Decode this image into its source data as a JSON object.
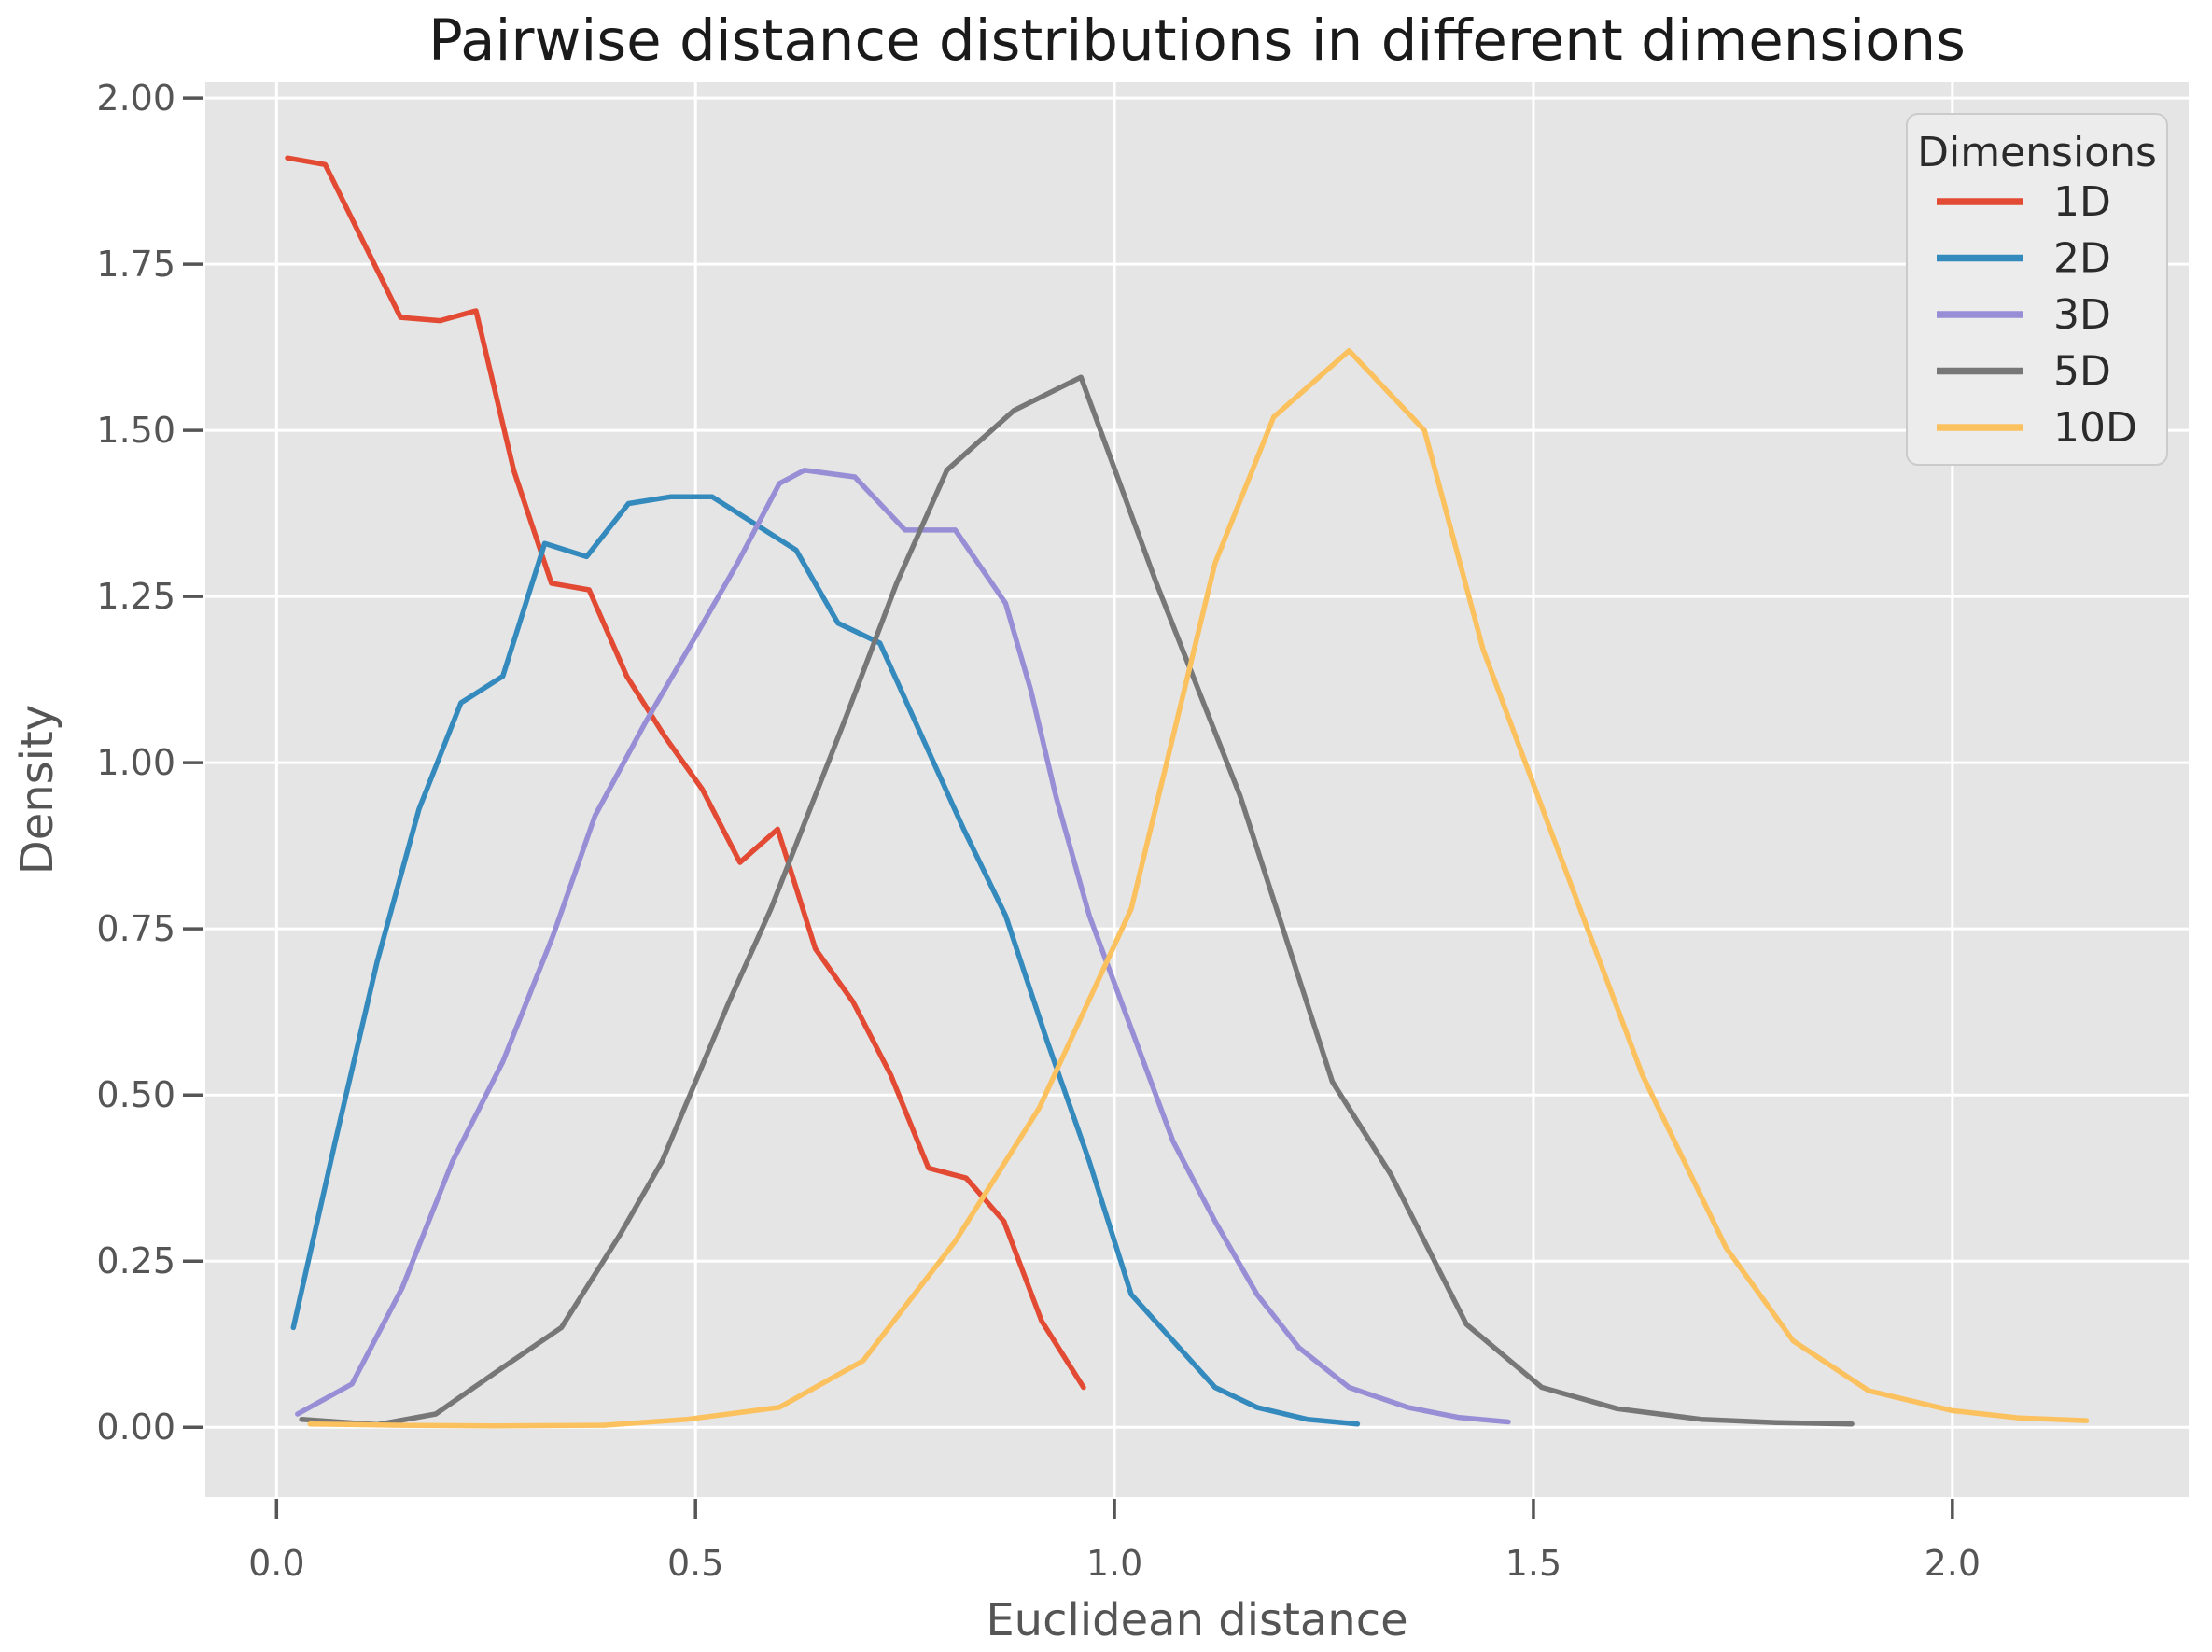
{
  "chart_data": {
    "type": "line",
    "title": "Pairwise distance distributions in different dimensions",
    "xlabel": "Euclidean distance",
    "ylabel": "Density",
    "xlim": [
      -0.085,
      2.282
    ],
    "ylim": [
      -0.105,
      2.024
    ],
    "grid": true,
    "x_ticks": [
      {
        "value": 0.0,
        "label": "0.0"
      },
      {
        "value": 0.5,
        "label": "0.5"
      },
      {
        "value": 1.0,
        "label": "1.0"
      },
      {
        "value": 1.5,
        "label": "1.5"
      },
      {
        "value": 2.0,
        "label": "2.0"
      }
    ],
    "y_ticks": [
      {
        "value": 0.0,
        "label": "0.00"
      },
      {
        "value": 0.25,
        "label": "0.25"
      },
      {
        "value": 0.5,
        "label": "0.50"
      },
      {
        "value": 0.75,
        "label": "0.75"
      },
      {
        "value": 1.0,
        "label": "1.00"
      },
      {
        "value": 1.25,
        "label": "1.25"
      },
      {
        "value": 1.5,
        "label": "1.50"
      },
      {
        "value": 1.75,
        "label": "1.75"
      },
      {
        "value": 2.0,
        "label": "2.00"
      }
    ],
    "legend": {
      "title": "Dimensions",
      "position": "upper right"
    },
    "series": [
      {
        "name": "1D",
        "color": "#E24A33",
        "points": [
          [
            0.013,
            1.91
          ],
          [
            0.058,
            1.9
          ],
          [
            0.148,
            1.67
          ],
          [
            0.195,
            1.665
          ],
          [
            0.238,
            1.68
          ],
          [
            0.283,
            1.44
          ],
          [
            0.328,
            1.27
          ],
          [
            0.373,
            1.26
          ],
          [
            0.418,
            1.13
          ],
          [
            0.463,
            1.04
          ],
          [
            0.508,
            0.96
          ],
          [
            0.553,
            0.85
          ],
          [
            0.598,
            0.9
          ],
          [
            0.643,
            0.72
          ],
          [
            0.688,
            0.64
          ],
          [
            0.733,
            0.53
          ],
          [
            0.778,
            0.39
          ],
          [
            0.823,
            0.375
          ],
          [
            0.868,
            0.31
          ],
          [
            0.913,
            0.16
          ],
          [
            0.963,
            0.06
          ]
        ]
      },
      {
        "name": "2D",
        "color": "#348ABD",
        "points": [
          [
            0.02,
            0.15
          ],
          [
            0.07,
            0.43
          ],
          [
            0.12,
            0.7
          ],
          [
            0.17,
            0.93
          ],
          [
            0.22,
            1.09
          ],
          [
            0.27,
            1.13
          ],
          [
            0.32,
            1.33
          ],
          [
            0.37,
            1.31
          ],
          [
            0.42,
            1.39
          ],
          [
            0.47,
            1.4
          ],
          [
            0.52,
            1.4
          ],
          [
            0.57,
            1.36
          ],
          [
            0.62,
            1.32
          ],
          [
            0.67,
            1.21
          ],
          [
            0.72,
            1.18
          ],
          [
            0.77,
            1.04
          ],
          [
            0.82,
            0.9
          ],
          [
            0.87,
            0.77
          ],
          [
            0.92,
            0.58
          ],
          [
            0.97,
            0.4
          ],
          [
            1.02,
            0.2
          ],
          [
            1.07,
            0.13
          ],
          [
            1.12,
            0.06
          ],
          [
            1.17,
            0.03
          ],
          [
            1.23,
            0.012
          ],
          [
            1.29,
            0.005
          ]
        ]
      },
      {
        "name": "3D",
        "color": "#988ED5",
        "points": [
          [
            0.025,
            0.02
          ],
          [
            0.09,
            0.065
          ],
          [
            0.15,
            0.21
          ],
          [
            0.21,
            0.4
          ],
          [
            0.27,
            0.55
          ],
          [
            0.33,
            0.74
          ],
          [
            0.38,
            0.92
          ],
          [
            0.44,
            1.06
          ],
          [
            0.5,
            1.19
          ],
          [
            0.55,
            1.3
          ],
          [
            0.6,
            1.42
          ],
          [
            0.63,
            1.44
          ],
          [
            0.69,
            1.43
          ],
          [
            0.75,
            1.35
          ],
          [
            0.81,
            1.35
          ],
          [
            0.87,
            1.24
          ],
          [
            0.9,
            1.11
          ],
          [
            0.93,
            0.95
          ],
          [
            0.97,
            0.77
          ],
          [
            1.02,
            0.6
          ],
          [
            1.07,
            0.43
          ],
          [
            1.12,
            0.31
          ],
          [
            1.17,
            0.2
          ],
          [
            1.22,
            0.12
          ],
          [
            1.28,
            0.06
          ],
          [
            1.35,
            0.03
          ],
          [
            1.41,
            0.015
          ],
          [
            1.47,
            0.008
          ]
        ]
      },
      {
        "name": "5D",
        "color": "#777777",
        "points": [
          [
            0.03,
            0.012
          ],
          [
            0.12,
            0.004
          ],
          [
            0.19,
            0.02
          ],
          [
            0.27,
            0.09
          ],
          [
            0.34,
            0.15
          ],
          [
            0.41,
            0.29
          ],
          [
            0.46,
            0.4
          ],
          [
            0.54,
            0.64
          ],
          [
            0.59,
            0.78
          ],
          [
            0.68,
            1.07
          ],
          [
            0.74,
            1.27
          ],
          [
            0.8,
            1.44
          ],
          [
            0.88,
            1.53
          ],
          [
            0.96,
            1.58
          ],
          [
            1.05,
            1.27
          ],
          [
            1.15,
            0.95
          ],
          [
            1.26,
            0.52
          ],
          [
            1.33,
            0.38
          ],
          [
            1.42,
            0.155
          ],
          [
            1.51,
            0.06
          ],
          [
            1.6,
            0.028
          ],
          [
            1.7,
            0.012
          ],
          [
            1.79,
            0.007
          ],
          [
            1.88,
            0.005
          ]
        ]
      },
      {
        "name": "10D",
        "color": "#FBC15E",
        "points": [
          [
            0.04,
            0.005
          ],
          [
            0.15,
            0.003
          ],
          [
            0.26,
            0.002
          ],
          [
            0.39,
            0.003
          ],
          [
            0.49,
            0.012
          ],
          [
            0.6,
            0.03
          ],
          [
            0.7,
            0.1
          ],
          [
            0.81,
            0.28
          ],
          [
            0.91,
            0.48
          ],
          [
            1.02,
            0.78
          ],
          [
            1.12,
            1.3
          ],
          [
            1.19,
            1.52
          ],
          [
            1.28,
            1.62
          ],
          [
            1.37,
            1.5
          ],
          [
            1.44,
            1.17
          ],
          [
            1.52,
            0.9
          ],
          [
            1.63,
            0.53
          ],
          [
            1.73,
            0.27
          ],
          [
            1.81,
            0.13
          ],
          [
            1.9,
            0.055
          ],
          [
            2.0,
            0.025
          ],
          [
            2.08,
            0.014
          ],
          [
            2.16,
            0.01
          ]
        ]
      }
    ]
  },
  "styles": {
    "figure_bg": "#ffffff",
    "plot_bg": "#e5e5e5",
    "grid_color": "#ffffff",
    "tick_color": "#555555",
    "tick_label_color": "#555555",
    "axis_label_color": "#555555",
    "title_color": "#1a1a1a",
    "legend_bg": "#ececec",
    "legend_border": "#cbcbcb",
    "legend_text_color": "#2b2b2b"
  }
}
